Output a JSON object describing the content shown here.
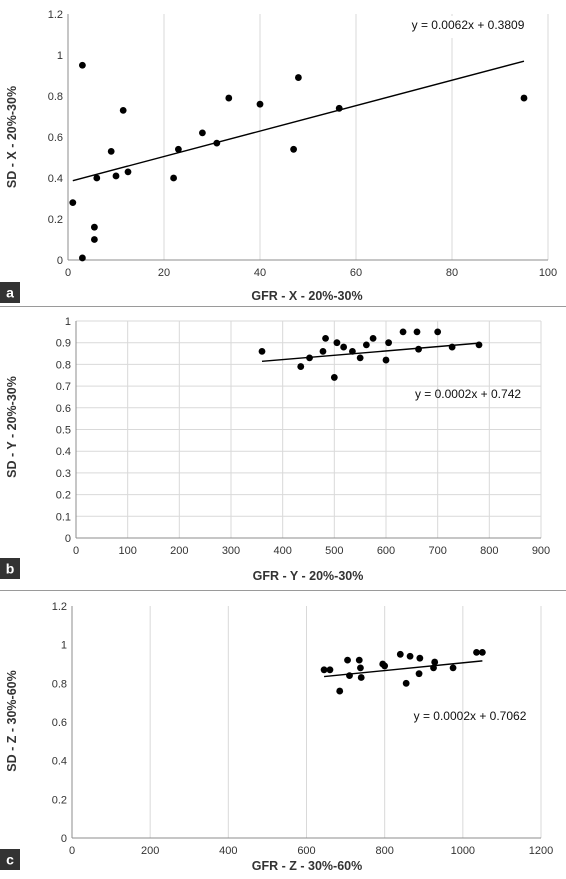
{
  "chart_data": [
    {
      "type": "scatter",
      "panel_label": "a",
      "xlabel": "GFR - X - 20%-30%",
      "ylabel": "SD - X - 20%-30%",
      "xlim": [
        0,
        100
      ],
      "ylim": [
        0,
        1.2
      ],
      "x_ticks": [
        "0",
        "20",
        "40",
        "60",
        "80",
        "100"
      ],
      "y_ticks": [
        "0",
        "0.2",
        "0.4",
        "0.6",
        "0.8",
        "1",
        "1.2"
      ],
      "trendline": {
        "equation": "y = 0.0062x + 0.3809",
        "slope": 0.0062,
        "intercept": 0.3809,
        "x_range": [
          1,
          95
        ]
      },
      "grid": "vertical",
      "points": [
        {
          "x": 1,
          "y": 0.28
        },
        {
          "x": 3,
          "y": 0.95
        },
        {
          "x": 3,
          "y": 0.01
        },
        {
          "x": 5.5,
          "y": 0.16
        },
        {
          "x": 5.5,
          "y": 0.1
        },
        {
          "x": 6,
          "y": 0.4
        },
        {
          "x": 9,
          "y": 0.53
        },
        {
          "x": 10,
          "y": 0.41
        },
        {
          "x": 11.5,
          "y": 0.73
        },
        {
          "x": 12.5,
          "y": 0.43
        },
        {
          "x": 22,
          "y": 0.4
        },
        {
          "x": 23,
          "y": 0.54
        },
        {
          "x": 28,
          "y": 0.62
        },
        {
          "x": 31,
          "y": 0.57
        },
        {
          "x": 33.5,
          "y": 0.79
        },
        {
          "x": 40,
          "y": 0.76
        },
        {
          "x": 47,
          "y": 0.54
        },
        {
          "x": 48,
          "y": 0.89
        },
        {
          "x": 56.5,
          "y": 0.74
        },
        {
          "x": 95,
          "y": 0.79
        }
      ]
    },
    {
      "type": "scatter",
      "panel_label": "b",
      "xlabel": "GFR - Y - 20%-30%",
      "ylabel": "SD - Y - 20%-30%",
      "xlim": [
        0,
        900
      ],
      "ylim": [
        0,
        1
      ],
      "x_ticks": [
        "0",
        "100",
        "200",
        "300",
        "400",
        "500",
        "600",
        "700",
        "800",
        "900"
      ],
      "y_ticks": [
        "0",
        "0.1",
        "0.2",
        "0.3",
        "0.4",
        "0.5",
        "0.6",
        "0.7",
        "0.8",
        "0.9",
        "1"
      ],
      "trendline": {
        "equation": "y = 0.0002x + 0.742",
        "slope": 0.0002,
        "intercept": 0.742,
        "x_range": [
          360,
          780
        ]
      },
      "grid": "both",
      "points": [
        {
          "x": 360,
          "y": 0.86
        },
        {
          "x": 435,
          "y": 0.79
        },
        {
          "x": 452,
          "y": 0.83
        },
        {
          "x": 478,
          "y": 0.86
        },
        {
          "x": 483,
          "y": 0.92
        },
        {
          "x": 500,
          "y": 0.74
        },
        {
          "x": 505,
          "y": 0.9
        },
        {
          "x": 518,
          "y": 0.88
        },
        {
          "x": 535,
          "y": 0.86
        },
        {
          "x": 550,
          "y": 0.83
        },
        {
          "x": 562,
          "y": 0.89
        },
        {
          "x": 575,
          "y": 0.92
        },
        {
          "x": 600,
          "y": 0.82
        },
        {
          "x": 605,
          "y": 0.9
        },
        {
          "x": 633,
          "y": 0.95
        },
        {
          "x": 660,
          "y": 0.95
        },
        {
          "x": 663,
          "y": 0.87
        },
        {
          "x": 700,
          "y": 0.95
        },
        {
          "x": 728,
          "y": 0.88
        },
        {
          "x": 780,
          "y": 0.89
        }
      ]
    },
    {
      "type": "scatter",
      "panel_label": "c",
      "xlabel": "GFR - Z - 30%-60%",
      "ylabel": "SD - Z - 30%-60%",
      "xlim": [
        0,
        1200
      ],
      "ylim": [
        0,
        1.2
      ],
      "x_ticks": [
        "0",
        "200",
        "400",
        "600",
        "800",
        "1000",
        "1200"
      ],
      "y_ticks": [
        "0",
        "0.2",
        "0.4",
        "0.6",
        "0.8",
        "1",
        "1.2"
      ],
      "trendline": {
        "equation": "y = 0.0002x + 0.7062",
        "slope": 0.0002,
        "intercept": 0.7062,
        "x_range": [
          645,
          1050
        ]
      },
      "grid": "vertical",
      "points": [
        {
          "x": 645,
          "y": 0.87
        },
        {
          "x": 660,
          "y": 0.87
        },
        {
          "x": 685,
          "y": 0.76
        },
        {
          "x": 705,
          "y": 0.92
        },
        {
          "x": 710,
          "y": 0.84
        },
        {
          "x": 735,
          "y": 0.92
        },
        {
          "x": 738,
          "y": 0.88
        },
        {
          "x": 740,
          "y": 0.83
        },
        {
          "x": 795,
          "y": 0.9
        },
        {
          "x": 800,
          "y": 0.89
        },
        {
          "x": 840,
          "y": 0.95
        },
        {
          "x": 855,
          "y": 0.8
        },
        {
          "x": 865,
          "y": 0.94
        },
        {
          "x": 888,
          "y": 0.85
        },
        {
          "x": 890,
          "y": 0.93
        },
        {
          "x": 925,
          "y": 0.88
        },
        {
          "x": 928,
          "y": 0.91
        },
        {
          "x": 975,
          "y": 0.88
        },
        {
          "x": 1035,
          "y": 0.96
        },
        {
          "x": 1050,
          "y": 0.96
        }
      ]
    }
  ]
}
